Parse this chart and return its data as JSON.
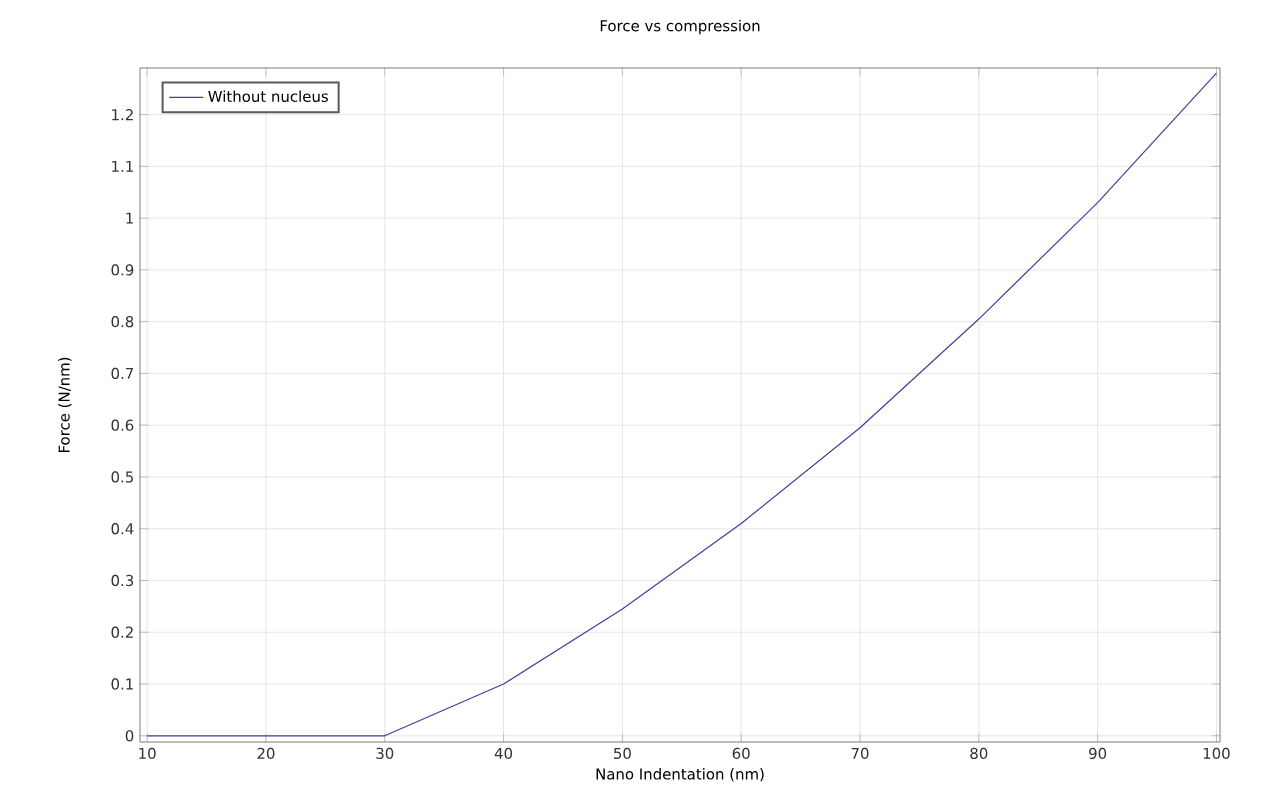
{
  "chart_data": {
    "type": "line",
    "title": "Force vs compression",
    "xlabel": "Nano Indentation (nm)",
    "ylabel": "Force (N/nm)",
    "x": [
      10,
      20,
      30,
      40,
      50,
      60,
      70,
      80,
      90,
      100
    ],
    "series": [
      {
        "name": "Without nucleus",
        "color": "#3f3f9c",
        "values": [
          0,
          0,
          0,
          0.1,
          0.245,
          0.41,
          0.595,
          0.805,
          1.03,
          1.28
        ]
      }
    ],
    "xlim": [
      9.4,
      100.3
    ],
    "ylim": [
      -0.012,
      1.29
    ],
    "xticks": [
      10,
      20,
      30,
      40,
      50,
      60,
      70,
      80,
      90,
      100
    ],
    "yticks": [
      0,
      0.1,
      0.2,
      0.3,
      0.4,
      0.5,
      0.6,
      0.7,
      0.8,
      0.9,
      1,
      1.1,
      1.2
    ],
    "grid": true,
    "legend": "top left",
    "marker": "none",
    "line_style": "solid"
  }
}
